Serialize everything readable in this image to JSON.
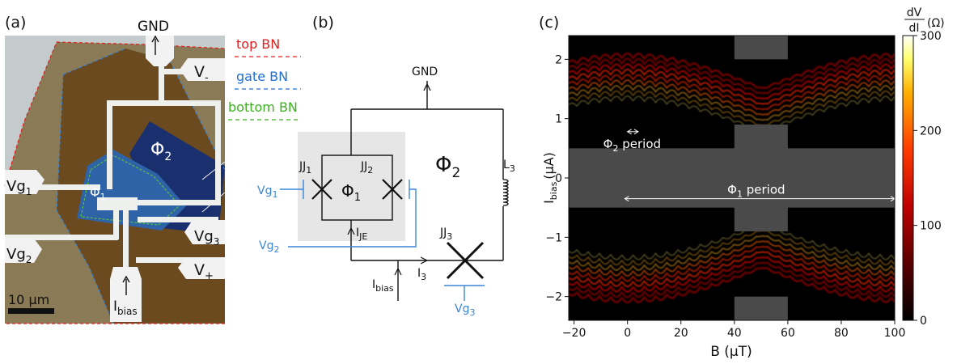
{
  "panels": {
    "a": {
      "label": "(a)",
      "legend": [
        {
          "text": "top BN",
          "color": "#e02020"
        },
        {
          "text": "gate BN",
          "color": "#1e6fd8"
        },
        {
          "text": "bottom BN",
          "color": "#3cb020"
        }
      ],
      "labels": {
        "gnd": "GND",
        "v_minus_main": "V",
        "v_minus_sub": "-",
        "v_plus_main": "V",
        "v_plus_sub": "+",
        "vg1_main": "Vg",
        "vg1_sub": "1",
        "vg2_main": "Vg",
        "vg2_sub": "2",
        "vg3_main": "Vg",
        "vg3_sub": "3",
        "phi1_main": "Φ",
        "phi1_sub": "1",
        "phi2_main": "Φ",
        "phi2_sub": "2",
        "ibias_main": "I",
        "ibias_sub": "bias",
        "scale_bar": "10 μm"
      }
    },
    "b": {
      "label": "(b)",
      "labels": {
        "gnd": "GND",
        "jj1_main": "JJ",
        "jj1_sub": "1",
        "jj2_main": "JJ",
        "jj2_sub": "2",
        "jj3_main": "JJ",
        "jj3_sub": "3",
        "phi1_main": "Φ",
        "phi1_sub": "1",
        "phi2_main": "Φ",
        "phi2_sub": "2",
        "l3_main": "L",
        "l3_sub": "3",
        "vg1_main": "Vg",
        "vg1_sub": "1",
        "vg2_main": "Vg",
        "vg2_sub": "2",
        "vg3_main": "Vg",
        "vg3_sub": "3",
        "ije_main": "I",
        "ije_sub": "JE",
        "ibias_main": "I",
        "ibias_sub": "bias",
        "i3_main": "I",
        "i3_sub": "3"
      },
      "colors": {
        "wire": "#111111",
        "gate": "#3a86d8",
        "loop_fill": "#e6e6e6"
      }
    },
    "c": {
      "label": "(c)",
      "chart_data": {
        "type": "heatmap",
        "xlabel": "B (μT)",
        "ylabel_main": "I",
        "ylabel_sub": "bias",
        "ylabel_unit": "(μA)",
        "xlim": [
          -22,
          100
        ],
        "ylim": [
          -2.4,
          2.4
        ],
        "xticks": [
          -20,
          0,
          20,
          40,
          60,
          80,
          100
        ],
        "yticks": [
          -2,
          -1,
          0,
          1,
          2
        ],
        "xtick_labels": [
          "−20",
          "0",
          "20",
          "40",
          "60",
          "80",
          "100"
        ],
        "ytick_labels": [
          "−2",
          "−1",
          "0",
          "1",
          "2"
        ],
        "colorbar": {
          "label_num": "dV",
          "label_den": "dI",
          "label_unit": "(Ω)",
          "range": [
            0,
            300
          ],
          "ticks": [
            0,
            100,
            200,
            300
          ],
          "tick_labels": [
            "0",
            "100",
            "200",
            "300"
          ]
        },
        "masked_color": "#4a4a4a",
        "masked_regions": [
          {
            "x": [
              -22,
              100
            ],
            "y": [
              -0.5,
              0.5
            ]
          },
          {
            "x": [
              40,
              60
            ],
            "y": [
              -0.9,
              0.9
            ]
          },
          {
            "x": [
              40,
              60
            ],
            "y": [
              2.0,
              2.4
            ]
          },
          {
            "x": [
              40,
              60
            ],
            "y": [
              -2.4,
              -2.0
            ]
          }
        ],
        "annotations": [
          {
            "main": "Φ",
            "sub": "2",
            "text": " period",
            "x_start": 0,
            "x_end": 4,
            "y": 0.78
          },
          {
            "main": "Φ",
            "sub": "1",
            "text": " period",
            "x_start": -1,
            "x_end": 100,
            "y": -0.35
          }
        ],
        "periods": {
          "phi1_uT": 101,
          "phi2_uT": 4.2
        },
        "switching_current": {
          "max_uA": 2.1,
          "min_uA": 1.2
        }
      }
    }
  }
}
